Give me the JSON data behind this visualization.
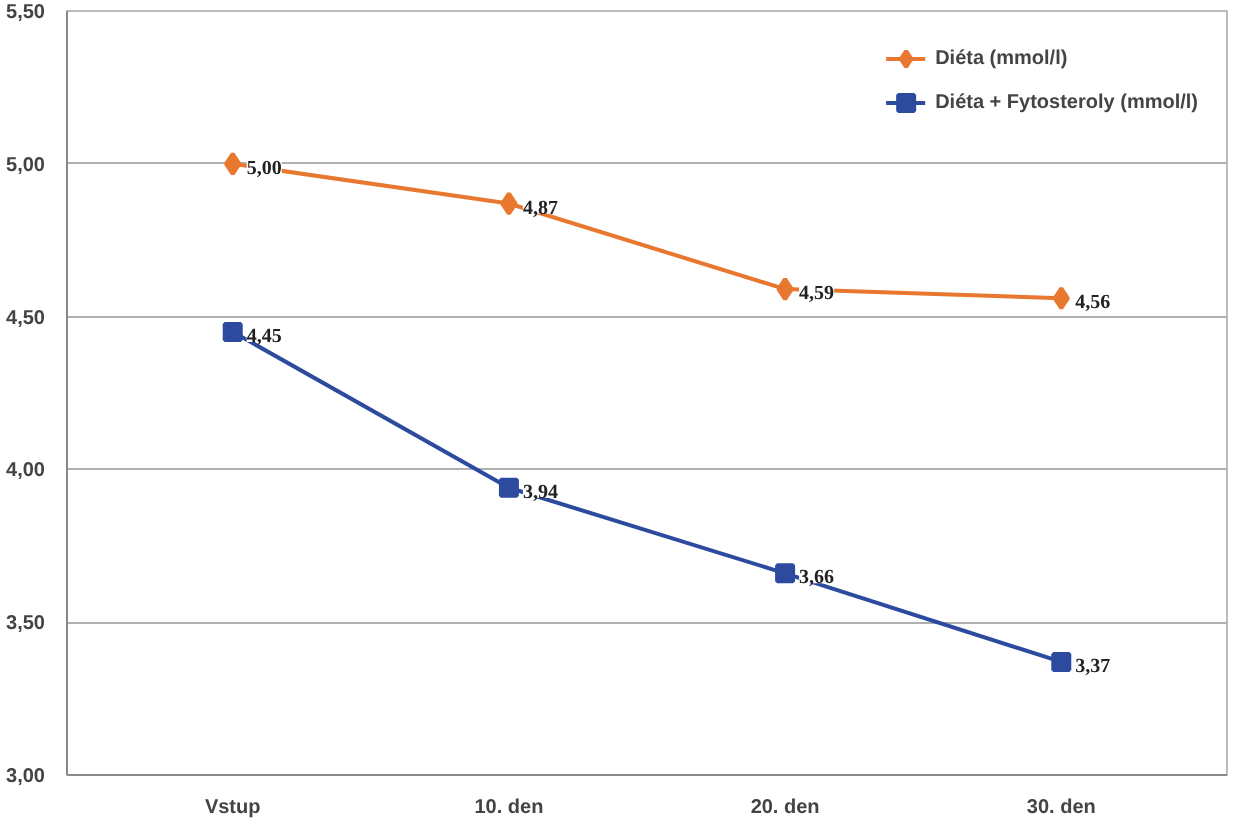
{
  "chart_data": {
    "type": "line",
    "categories": [
      "Vstup",
      "10. den",
      "20. den",
      "30. den"
    ],
    "series": [
      {
        "name": "Diéta (mmol/l)",
        "color": "#e8782f",
        "marker": "diamond",
        "values": [
          5.0,
          4.87,
          4.59,
          4.56
        ],
        "value_labels": [
          "5,00",
          "4,87",
          "4,59",
          "4,56"
        ]
      },
      {
        "name": "Diéta + Fytosteroly (mmol/l)",
        "color": "#2c4a9e",
        "marker": "square",
        "values": [
          4.45,
          3.94,
          3.66,
          3.37
        ],
        "value_labels": [
          "4,45",
          "3,94",
          "3,66",
          "3,37"
        ]
      }
    ],
    "ylim": [
      3.0,
      5.5
    ],
    "yticks": [
      {
        "value": 3.0,
        "label": "3,00"
      },
      {
        "value": 3.5,
        "label": "3,50"
      },
      {
        "value": 4.0,
        "label": "4,00"
      },
      {
        "value": 4.5,
        "label": "4,50"
      },
      {
        "value": 5.0,
        "label": "5,00"
      },
      {
        "value": 5.5,
        "label": "5,50"
      }
    ],
    "grid": "y",
    "legend": "top right",
    "line_style": "solid"
  }
}
